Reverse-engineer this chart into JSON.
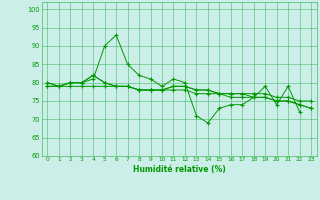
{
  "background_color": "#cceee8",
  "grid_color": "#44bb66",
  "line_color": "#009900",
  "marker_color": "#009900",
  "xlabel": "Humidité relative (%)",
  "xlabel_color": "#009900",
  "tick_color": "#009900",
  "ylim": [
    60,
    102
  ],
  "xlim": [
    -0.5,
    23.5
  ],
  "yticks": [
    60,
    65,
    70,
    75,
    80,
    85,
    90,
    95,
    100
  ],
  "xticks": [
    0,
    1,
    2,
    3,
    4,
    5,
    6,
    7,
    8,
    9,
    10,
    11,
    12,
    13,
    14,
    15,
    16,
    17,
    18,
    19,
    20,
    21,
    22,
    23
  ],
  "series": [
    [
      79,
      79,
      80,
      80,
      81,
      90,
      93,
      85,
      82,
      81,
      79,
      81,
      80,
      71,
      69,
      73,
      74,
      74,
      76,
      79,
      74,
      79,
      72,
      null
    ],
    [
      80,
      79,
      80,
      80,
      82,
      80,
      79,
      79,
      78,
      78,
      78,
      79,
      79,
      78,
      78,
      77,
      77,
      77,
      77,
      77,
      76,
      76,
      75,
      75
    ],
    [
      80,
      79,
      80,
      80,
      82,
      80,
      79,
      79,
      78,
      78,
      78,
      79,
      79,
      78,
      78,
      77,
      77,
      77,
      76,
      76,
      75,
      75,
      74,
      73
    ],
    [
      79,
      79,
      79,
      79,
      79,
      79,
      79,
      79,
      78,
      78,
      78,
      78,
      78,
      77,
      77,
      77,
      76,
      76,
      76,
      76,
      75,
      75,
      74,
      73
    ]
  ]
}
